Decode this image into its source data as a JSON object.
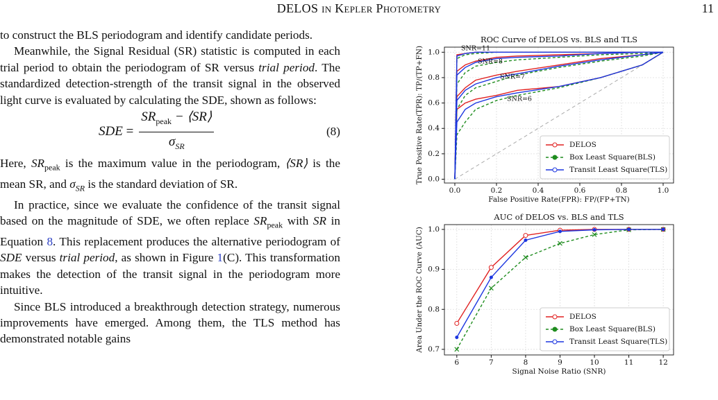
{
  "header": {
    "title": "DELOS in Kepler Photometry",
    "page": "11"
  },
  "body": {
    "p1": "to construct the BLS periodogram and identify candidate periods.",
    "p2": [
      "Meanwhile, the Signal Residual (SR) statistic is computed in each trial period to obtain the periodogram of SR versus ",
      "trial period",
      ". The standardized detection-strength of the transit signal in the observed light curve is evaluated by calculating the SDE, shown as follows:"
    ],
    "equation": {
      "lhs": "SDE",
      "eq": "=",
      "num": "SR",
      "num_sub": "peak",
      "num_rest": " − ⟨SR⟩",
      "den": "σ",
      "den_sub": "SR",
      "number": "(8)"
    },
    "p3": [
      "Here, ",
      "SR",
      "peak",
      " is the maximum value in the periodogram, ",
      "⟨SR⟩",
      " is the mean SR, and ",
      "σ",
      "SR",
      " is the standard deviation of SR."
    ],
    "p4": [
      "In practice, since we evaluate the confidence of the transit signal based on the magnitude of SDE, we often replace ",
      "SR",
      "peak",
      " with ",
      "SR",
      " in Equation ",
      "8",
      ". This replacement produces the alternative periodogram of ",
      "SDE",
      " versus ",
      "trial period",
      ", as shown in Figure ",
      "1",
      "(C). This transformation makes the detection of the transit signal in the periodogram more intuitive."
    ],
    "p5": "Since BLS introduced a breakthrough detection strategy, numerous improvements have emerged. Among them, the TLS method has demonstrated notable gains"
  },
  "chart_data": [
    {
      "type": "roc",
      "title": "ROC Curve of DELOS vs. BLS and TLS",
      "x_label": "False Positive Rate(FPR): FP/(FP+TN)",
      "y_label": "True Positive Rate(TPR): TP/(TP+FN)",
      "x": [
        0,
        0.01,
        0.05,
        0.1,
        0.2,
        0.3,
        0.5,
        0.7,
        0.9,
        1
      ],
      "series": [
        {
          "name": "DELOS",
          "color": "#e02020",
          "dash": false,
          "curves": [
            [
              0,
              0.55,
              0.6,
              0.63,
              0.66,
              0.7,
              0.73,
              0.8,
              0.9,
              1
            ],
            [
              0,
              0.65,
              0.72,
              0.78,
              0.82,
              0.85,
              0.9,
              0.95,
              0.98,
              1
            ],
            [
              0,
              0.85,
              0.9,
              0.93,
              0.96,
              0.97,
              0.98,
              0.99,
              1,
              1
            ],
            [
              0,
              0.98,
              0.99,
              1,
              1,
              1,
              1,
              1,
              1,
              1
            ]
          ]
        },
        {
          "name": "Box Least Square(BLS)",
          "color": "#1e8c1e",
          "dash": true,
          "curves": [
            [
              0,
              0.35,
              0.45,
              0.55,
              0.62,
              0.66,
              0.72,
              0.8,
              0.9,
              1
            ],
            [
              0,
              0.55,
              0.66,
              0.72,
              0.77,
              0.82,
              0.88,
              0.93,
              0.97,
              1
            ],
            [
              0,
              0.75,
              0.84,
              0.89,
              0.92,
              0.94,
              0.96,
              0.98,
              0.99,
              1
            ],
            [
              0,
              0.95,
              0.98,
              0.99,
              1,
              1,
              1,
              1,
              1,
              1
            ]
          ]
        },
        {
          "name": "Transit Least Square(TLS)",
          "color": "#1c36e0",
          "dash": false,
          "curves": [
            [
              0,
              0.45,
              0.55,
              0.6,
              0.65,
              0.68,
              0.73,
              0.8,
              0.9,
              1
            ],
            [
              0,
              0.62,
              0.7,
              0.75,
              0.8,
              0.83,
              0.89,
              0.94,
              0.98,
              1
            ],
            [
              0,
              0.82,
              0.88,
              0.92,
              0.95,
              0.96,
              0.97,
              0.99,
              1,
              1
            ],
            [
              0,
              0.97,
              0.99,
              1,
              1,
              1,
              1,
              1,
              1,
              1
            ]
          ]
        }
      ],
      "reference_line": {
        "x": [
          0,
          1
        ],
        "y": [
          0,
          1
        ]
      },
      "annotations": [
        "SNR=11",
        "SNR=8",
        "SNR=7",
        "SNR=6"
      ],
      "xlim": [
        -0.05,
        1.05
      ],
      "ylim": [
        -0.03,
        1.04
      ],
      "xticks": [
        {
          "value": 0,
          "label": "0.0"
        },
        0.2,
        0.4,
        0.6,
        0.8,
        {
          "value": 1,
          "label": "1.0"
        }
      ],
      "yticks": [
        {
          "value": 0,
          "label": "0.0"
        },
        0.2,
        0.4,
        0.6,
        0.8,
        {
          "value": 1,
          "label": "1.0"
        }
      ],
      "grid": true,
      "legend": "lower right"
    },
    {
      "type": "line",
      "title": "AUC of DELOS vs. BLS and TLS",
      "x_label": "Signal Noise Ratio (SNR)",
      "y_label": "Area Under the ROC Curve (AUC)",
      "x": [
        6,
        7,
        8,
        9,
        10,
        11,
        12
      ],
      "series": [
        {
          "name": "DELOS",
          "color": "#e02020",
          "dash": false,
          "marker": "circle",
          "values": [
            0.765,
            0.905,
            0.985,
            0.998,
            1.0,
            1.0,
            1.0
          ]
        },
        {
          "name": "Box Least Square(BLS)",
          "color": "#1e8c1e",
          "dash": true,
          "marker": "x",
          "values": [
            0.7,
            0.853,
            0.93,
            0.965,
            0.987,
            0.999,
            1.0
          ]
        },
        {
          "name": "Transit Least Square(TLS)",
          "color": "#1c36e0",
          "dash": false,
          "marker": "dot",
          "values": [
            0.73,
            0.88,
            0.973,
            0.995,
            0.999,
            1.0,
            1.0
          ]
        }
      ],
      "xlim": [
        5.64,
        12.3
      ],
      "ylim": [
        0.686,
        1.012
      ],
      "xticks": [
        6,
        7,
        8,
        9,
        10,
        11,
        12
      ],
      "yticks": [
        0.7,
        0.8,
        0.9,
        {
          "value": 1,
          "label": "1.0"
        }
      ],
      "grid": true,
      "legend": "lower right"
    }
  ]
}
